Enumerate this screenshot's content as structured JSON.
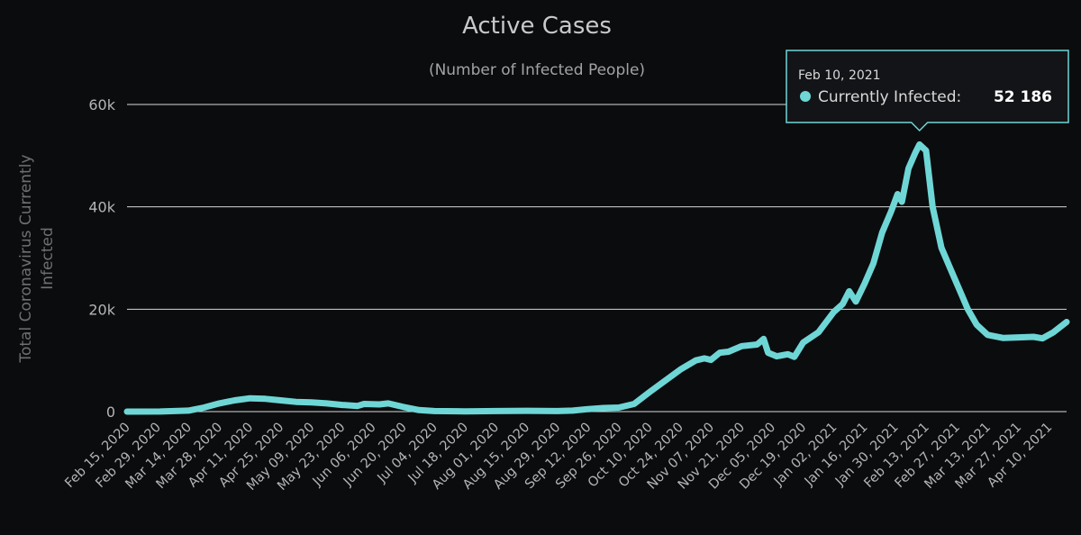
{
  "chart_data": {
    "type": "line",
    "title": "Active Cases",
    "subtitle": "(Number of Infected People)",
    "xlabel": "",
    "ylabel": "Total Coronavirus Currently Infected",
    "ylabel_lines": [
      "Total Coronavirus Currently",
      "Infected"
    ],
    "ylim": [
      0,
      60000
    ],
    "yticks": [
      {
        "value": 0,
        "label": "0"
      },
      {
        "value": 20000,
        "label": "20k"
      },
      {
        "value": 40000,
        "label": "40k"
      },
      {
        "value": 60000,
        "label": "60k"
      }
    ],
    "grid": true,
    "legend": "none",
    "x_start": "2020-02-15",
    "x_end": "2021-04-18",
    "xticks": [
      {
        "date": "2020-02-15",
        "label": "Feb 15, 2020"
      },
      {
        "date": "2020-02-29",
        "label": "Feb 29, 2020"
      },
      {
        "date": "2020-03-14",
        "label": "Mar 14, 2020"
      },
      {
        "date": "2020-03-28",
        "label": "Mar 28, 2020"
      },
      {
        "date": "2020-04-11",
        "label": "Apr 11, 2020"
      },
      {
        "date": "2020-04-25",
        "label": "Apr 25, 2020"
      },
      {
        "date": "2020-05-09",
        "label": "May 09, 2020"
      },
      {
        "date": "2020-05-23",
        "label": "May 23, 2020"
      },
      {
        "date": "2020-06-06",
        "label": "Jun 06, 2020"
      },
      {
        "date": "2020-06-20",
        "label": "Jun 20, 2020"
      },
      {
        "date": "2020-07-04",
        "label": "Jul 04, 2020"
      },
      {
        "date": "2020-07-18",
        "label": "Jul 18, 2020"
      },
      {
        "date": "2020-08-01",
        "label": "Aug 01, 2020"
      },
      {
        "date": "2020-08-15",
        "label": "Aug 15, 2020"
      },
      {
        "date": "2020-08-29",
        "label": "Aug 29, 2020"
      },
      {
        "date": "2020-09-12",
        "label": "Sep 12, 2020"
      },
      {
        "date": "2020-09-26",
        "label": "Sep 26, 2020"
      },
      {
        "date": "2020-10-10",
        "label": "Oct 10, 2020"
      },
      {
        "date": "2020-10-24",
        "label": "Oct 24, 2020"
      },
      {
        "date": "2020-11-07",
        "label": "Nov 07, 2020"
      },
      {
        "date": "2020-11-21",
        "label": "Nov 21, 2020"
      },
      {
        "date": "2020-12-05",
        "label": "Dec 05, 2020"
      },
      {
        "date": "2020-12-19",
        "label": "Dec 19, 2020"
      },
      {
        "date": "2021-01-02",
        "label": "Jan 02, 2021"
      },
      {
        "date": "2021-01-16",
        "label": "Jan 16, 2021"
      },
      {
        "date": "2021-01-30",
        "label": "Jan 30, 2021"
      },
      {
        "date": "2021-02-13",
        "label": "Feb 13, 2021"
      },
      {
        "date": "2021-02-27",
        "label": "Feb 27, 2021"
      },
      {
        "date": "2021-03-13",
        "label": "Mar 13, 2021"
      },
      {
        "date": "2021-03-27",
        "label": "Mar 27, 2021"
      },
      {
        "date": "2021-04-10",
        "label": "Apr 10, 2021"
      }
    ],
    "series": [
      {
        "name": "Currently Infected",
        "color": "#6fd6d6",
        "points": [
          [
            "2020-02-15",
            0
          ],
          [
            "2020-03-01",
            10
          ],
          [
            "2020-03-14",
            200
          ],
          [
            "2020-03-21",
            800
          ],
          [
            "2020-03-28",
            1600
          ],
          [
            "2020-04-04",
            2200
          ],
          [
            "2020-04-11",
            2600
          ],
          [
            "2020-04-18",
            2500
          ],
          [
            "2020-04-25",
            2200
          ],
          [
            "2020-05-02",
            1900
          ],
          [
            "2020-05-09",
            1800
          ],
          [
            "2020-05-16",
            1600
          ],
          [
            "2020-05-23",
            1300
          ],
          [
            "2020-05-30",
            1100
          ],
          [
            "2020-06-02",
            1500
          ],
          [
            "2020-06-09",
            1400
          ],
          [
            "2020-06-13",
            1600
          ],
          [
            "2020-06-20",
            900
          ],
          [
            "2020-06-27",
            300
          ],
          [
            "2020-07-04",
            100
          ],
          [
            "2020-07-18",
            50
          ],
          [
            "2020-08-01",
            100
          ],
          [
            "2020-08-15",
            150
          ],
          [
            "2020-08-29",
            100
          ],
          [
            "2020-09-05",
            200
          ],
          [
            "2020-09-12",
            500
          ],
          [
            "2020-09-19",
            700
          ],
          [
            "2020-09-26",
            800
          ],
          [
            "2020-10-03",
            1500
          ],
          [
            "2020-10-10",
            3800
          ],
          [
            "2020-10-17",
            6000
          ],
          [
            "2020-10-24",
            8200
          ],
          [
            "2020-10-31",
            10000
          ],
          [
            "2020-11-04",
            10400
          ],
          [
            "2020-11-07",
            10100
          ],
          [
            "2020-11-11",
            11500
          ],
          [
            "2020-11-15",
            11700
          ],
          [
            "2020-11-21",
            12800
          ],
          [
            "2020-11-28",
            13100
          ],
          [
            "2020-12-01",
            14200
          ],
          [
            "2020-12-03",
            11500
          ],
          [
            "2020-12-07",
            10800
          ],
          [
            "2020-12-12",
            11200
          ],
          [
            "2020-12-15",
            10700
          ],
          [
            "2020-12-19",
            13500
          ],
          [
            "2020-12-26",
            15500
          ],
          [
            "2021-01-02",
            19500
          ],
          [
            "2021-01-06",
            21000
          ],
          [
            "2021-01-09",
            23500
          ],
          [
            "2021-01-12",
            21500
          ],
          [
            "2021-01-16",
            25000
          ],
          [
            "2021-01-20",
            29000
          ],
          [
            "2021-01-24",
            35000
          ],
          [
            "2021-01-28",
            39000
          ],
          [
            "2021-01-31",
            42500
          ],
          [
            "2021-02-02",
            41000
          ],
          [
            "2021-02-05",
            47500
          ],
          [
            "2021-02-08",
            50500
          ],
          [
            "2021-02-10",
            52186
          ],
          [
            "2021-02-13",
            51000
          ],
          [
            "2021-02-16",
            40000
          ],
          [
            "2021-02-20",
            32000
          ],
          [
            "2021-02-24",
            28000
          ],
          [
            "2021-02-28",
            24000
          ],
          [
            "2021-03-04",
            20000
          ],
          [
            "2021-03-08",
            17000
          ],
          [
            "2021-03-13",
            15000
          ],
          [
            "2021-03-20",
            14400
          ],
          [
            "2021-03-27",
            14500
          ],
          [
            "2021-04-03",
            14600
          ],
          [
            "2021-04-07",
            14300
          ],
          [
            "2021-04-12",
            15500
          ],
          [
            "2021-04-18",
            17500
          ]
        ]
      }
    ],
    "tooltip": {
      "date": "Feb 10, 2021",
      "series": "Currently Infected",
      "value_label": "52 186",
      "point": [
        "2021-02-10",
        52186
      ]
    },
    "colors": {
      "background": "#0b0c0e",
      "line": "#6fd6d6",
      "tooltip_border": "#6fd6d6",
      "tooltip_bg": "#131417"
    }
  }
}
